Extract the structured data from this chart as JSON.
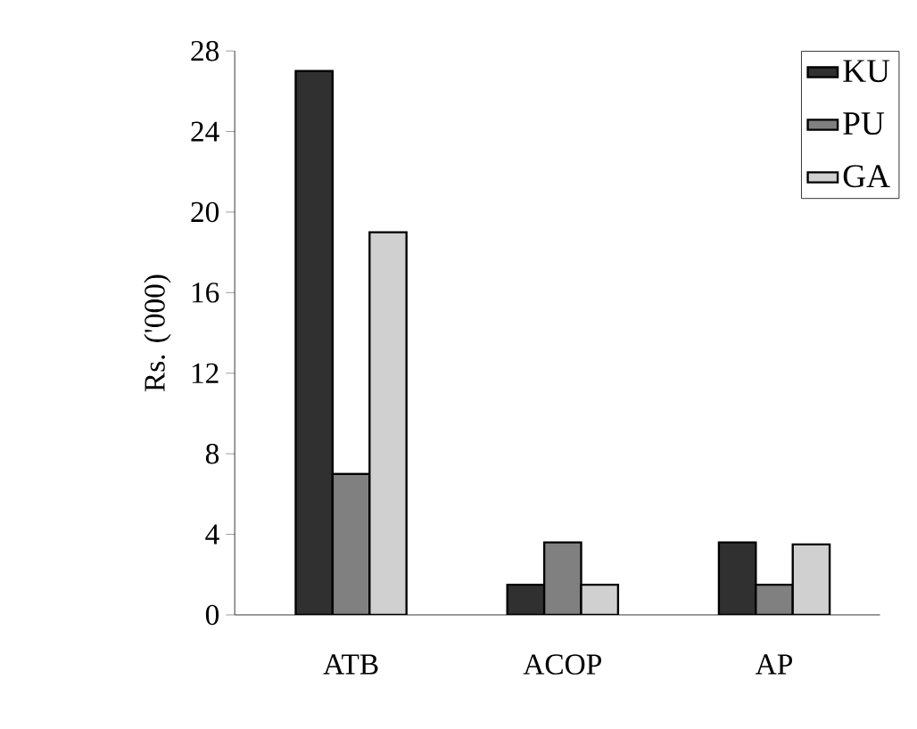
{
  "chart_data": {
    "type": "bar",
    "ylabel": "Rs. ('000)",
    "categories": [
      "ATB",
      "ACOP",
      "AP"
    ],
    "series": [
      {
        "name": "KU",
        "color": "#303030",
        "values": [
          27,
          1.5,
          3.6
        ]
      },
      {
        "name": "PU",
        "color": "#808080",
        "values": [
          7,
          3.6,
          1.5
        ]
      },
      {
        "name": "GA",
        "color": "#d0d0d0",
        "values": [
          19,
          1.5,
          3.5
        ]
      }
    ],
    "ylim": [
      0,
      28
    ],
    "yticks": [
      0,
      4,
      8,
      12,
      16,
      20,
      24,
      28
    ],
    "legend": "top right",
    "grid": false
  }
}
